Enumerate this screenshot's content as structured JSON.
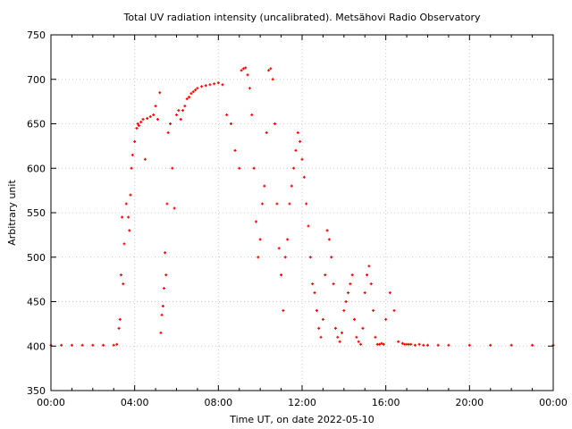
{
  "chart_data": {
    "type": "scatter",
    "title": "Total UV radiation intensity (uncalibrated). Metsähovi Radio Observatory",
    "xlabel": "Time UT, on date 2022-05-10",
    "ylabel": "Arbitrary unit",
    "xlim": [
      0,
      24
    ],
    "ylim": [
      350,
      750
    ],
    "x_ticks": [
      {
        "value": 0,
        "label": "00:00"
      },
      {
        "value": 4,
        "label": "04:00"
      },
      {
        "value": 8,
        "label": "08:00"
      },
      {
        "value": 12,
        "label": "12:00"
      },
      {
        "value": 16,
        "label": "16:00"
      },
      {
        "value": 20,
        "label": "20:00"
      },
      {
        "value": 24,
        "label": "00:00"
      }
    ],
    "y_ticks": [
      350,
      400,
      450,
      500,
      550,
      600,
      650,
      700,
      750
    ],
    "grid": true,
    "series_color": "#ff0000",
    "series": [
      {
        "x": [
          0,
          0.5,
          1,
          1.5,
          2,
          2.5,
          3.0,
          3.15,
          3.25,
          3.3,
          3.35,
          3.4,
          3.45,
          3.5,
          3.6,
          3.7,
          3.75,
          3.8,
          3.85,
          3.9,
          4.0,
          4.1,
          4.15,
          4.2,
          4.3,
          4.4,
          4.5,
          4.6,
          4.75,
          4.9,
          5.0,
          5.1,
          5.2,
          5.25,
          5.3,
          5.35,
          5.4,
          5.45,
          5.5,
          5.55,
          5.6,
          5.7,
          5.8,
          5.9,
          6.0,
          6.1,
          6.2,
          6.3,
          6.4,
          6.5,
          6.6,
          6.7,
          6.8,
          6.9,
          7.0,
          7.2,
          7.4,
          7.6,
          7.8,
          8.0,
          8.2,
          8.4,
          8.6,
          8.8,
          9.0,
          9.1,
          9.2,
          9.3,
          9.4,
          9.5,
          9.6,
          9.7,
          9.8,
          9.9,
          10.0,
          10.1,
          10.2,
          10.3,
          10.4,
          10.5,
          10.6,
          10.7,
          10.8,
          10.9,
          11.0,
          11.1,
          11.2,
          11.3,
          11.4,
          11.5,
          11.6,
          11.7,
          11.8,
          11.9,
          12.0,
          12.1,
          12.2,
          12.3,
          12.4,
          12.5,
          12.6,
          12.7,
          12.8,
          12.9,
          13.0,
          13.1,
          13.2,
          13.3,
          13.4,
          13.5,
          13.6,
          13.7,
          13.8,
          13.9,
          14.0,
          14.1,
          14.2,
          14.3,
          14.4,
          14.5,
          14.6,
          14.7,
          14.8,
          14.9,
          15.0,
          15.1,
          15.2,
          15.3,
          15.4,
          15.5,
          15.6,
          15.7,
          15.8,
          15.9,
          16.0,
          16.2,
          16.4,
          16.6,
          16.8,
          16.9,
          17.0,
          17.1,
          17.2,
          17.4,
          17.6,
          17.8,
          18.0,
          18.5,
          19,
          20,
          21,
          22,
          23,
          24
        ],
        "y": [
          401,
          401,
          401,
          401,
          401,
          401,
          401,
          402,
          420,
          430,
          480,
          545,
          470,
          515,
          560,
          545,
          530,
          570,
          600,
          615,
          630,
          645,
          650,
          648,
          652,
          655,
          610,
          656,
          658,
          660,
          670,
          655,
          685,
          415,
          435,
          445,
          465,
          505,
          480,
          560,
          640,
          650,
          600,
          555,
          660,
          665,
          655,
          665,
          670,
          678,
          680,
          684,
          686,
          688,
          690,
          692,
          693,
          694,
          695,
          696,
          694,
          660,
          650,
          620,
          600,
          710,
          712,
          713,
          705,
          690,
          660,
          600,
          540,
          500,
          520,
          560,
          580,
          640,
          710,
          712,
          700,
          650,
          560,
          510,
          480,
          440,
          500,
          520,
          560,
          580,
          600,
          620,
          640,
          630,
          610,
          590,
          560,
          535,
          500,
          470,
          460,
          440,
          420,
          410,
          430,
          480,
          530,
          520,
          500,
          470,
          420,
          410,
          405,
          415,
          440,
          450,
          460,
          470,
          480,
          430,
          410,
          405,
          402,
          420,
          460,
          480,
          490,
          470,
          440,
          410,
          402,
          402,
          403,
          402,
          430,
          460,
          440,
          405,
          403,
          402,
          402,
          402,
          402,
          401,
          402,
          401,
          401,
          401,
          401,
          401,
          401,
          401,
          401,
          401
        ]
      }
    ]
  }
}
